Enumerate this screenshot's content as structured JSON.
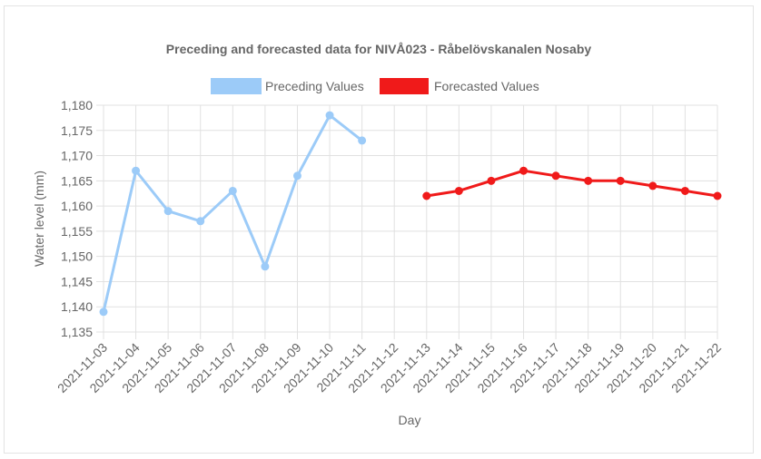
{
  "chart_data": {
    "type": "line",
    "title": "Preceding and forecasted data for NIVÅ023 - Råbelövskanalen Nosaby",
    "xlabel": "Day",
    "ylabel": "Water level (mm)",
    "ylim": [
      1135,
      1180
    ],
    "yticks": [
      1135,
      1140,
      1145,
      1150,
      1155,
      1160,
      1165,
      1170,
      1175,
      1180
    ],
    "ytick_labels": [
      "1,135",
      "1,140",
      "1,145",
      "1,150",
      "1,155",
      "1,160",
      "1,165",
      "1,170",
      "1,175",
      "1,180"
    ],
    "grid": true,
    "legend_position": "top",
    "categories": [
      "2021-11-03",
      "2021-11-04",
      "2021-11-05",
      "2021-11-06",
      "2021-11-07",
      "2021-11-08",
      "2021-11-09",
      "2021-11-10",
      "2021-11-11",
      "2021-11-12",
      "2021-11-13",
      "2021-11-14",
      "2021-11-15",
      "2021-11-16",
      "2021-11-17",
      "2021-11-18",
      "2021-11-19",
      "2021-11-20",
      "2021-11-21",
      "2021-11-22"
    ],
    "series": [
      {
        "name": "Preceding Values",
        "color": "#9ccbf8",
        "values": [
          1139,
          1167,
          1159,
          1157,
          1163,
          1148,
          1166,
          1178,
          1173,
          null,
          null,
          null,
          null,
          null,
          null,
          null,
          null,
          null,
          null,
          null
        ]
      },
      {
        "name": "Forecasted Values",
        "color": "#f01a1a",
        "values": [
          null,
          null,
          null,
          null,
          null,
          null,
          null,
          null,
          null,
          null,
          1162,
          1163,
          1165,
          1167,
          1166,
          1165,
          1165,
          1164,
          1163,
          1162
        ]
      }
    ]
  }
}
